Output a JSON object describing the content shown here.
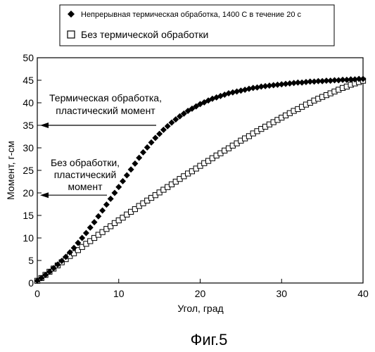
{
  "chart_data": {
    "type": "scatter",
    "title": "",
    "xlabel": "Угол, град",
    "ylabel": "Момент, г-см",
    "xlim": [
      0,
      40
    ],
    "ylim": [
      0,
      50
    ],
    "xticks": [
      "0",
      "10",
      "20",
      "30",
      "40"
    ],
    "yticks": [
      "0",
      "5",
      "10",
      "15",
      "20",
      "25",
      "30",
      "35",
      "40",
      "45",
      "50"
    ],
    "grid": false,
    "legend_position": "top",
    "series": [
      {
        "name": "Непрерывная термическая обработка, 1400 С в течение 20 с",
        "marker": "diamond-filled",
        "x": [
          0,
          0.5,
          1,
          1.5,
          2,
          2.5,
          3,
          3.5,
          4,
          4.5,
          5,
          5.5,
          6,
          6.5,
          7,
          7.5,
          8,
          8.5,
          9,
          9.5,
          10,
          10.5,
          11,
          11.5,
          12,
          12.5,
          13,
          13.5,
          14,
          14.5,
          15,
          15.5,
          16,
          16.5,
          17,
          17.5,
          18,
          18.5,
          19,
          19.5,
          20,
          20.5,
          21,
          21.5,
          22,
          22.5,
          23,
          23.5,
          24,
          24.5,
          25,
          25.5,
          26,
          26.5,
          27,
          27.5,
          28,
          28.5,
          29,
          29.5,
          30,
          30.5,
          31,
          31.5,
          32,
          32.5,
          33,
          33.5,
          34,
          34.5,
          35,
          35.5,
          36,
          36.5,
          37,
          37.5,
          38,
          38.5,
          39,
          39.5,
          40
        ],
        "y": [
          0.5,
          1.1,
          1.8,
          2.5,
          3.3,
          4.1,
          4.9,
          5.8,
          6.8,
          7.8,
          8.9,
          10,
          11.1,
          12.3,
          13.5,
          14.8,
          16.1,
          17.4,
          18.7,
          20,
          21.3,
          22.6,
          23.9,
          25.2,
          26.5,
          27.8,
          29,
          30.1,
          31.2,
          32.2,
          33.1,
          34,
          34.8,
          35.6,
          36.3,
          37,
          37.6,
          38.2,
          38.7,
          39.2,
          39.7,
          40.1,
          40.5,
          40.9,
          41.2,
          41.5,
          41.8,
          42.1,
          42.3,
          42.5,
          42.7,
          42.9,
          43.1,
          43.3,
          43.4,
          43.6,
          43.7,
          43.8,
          43.9,
          44,
          44.1,
          44.2,
          44.3,
          44.4,
          44.5,
          44.5,
          44.6,
          44.7,
          44.7,
          44.8,
          44.8,
          44.9,
          44.9,
          45,
          45,
          45.1,
          45.1,
          45.2,
          45.2,
          45.3,
          45.3
        ]
      },
      {
        "name": "Без термической обработки",
        "marker": "square-open",
        "x": [
          0,
          0.5,
          1,
          1.5,
          2,
          2.5,
          3,
          3.5,
          4,
          4.5,
          5,
          5.5,
          6,
          6.5,
          7,
          7.5,
          8,
          8.5,
          9,
          9.5,
          10,
          10.5,
          11,
          11.5,
          12,
          12.5,
          13,
          13.5,
          14,
          14.5,
          15,
          15.5,
          16,
          16.5,
          17,
          17.5,
          18,
          18.5,
          19,
          19.5,
          20,
          20.5,
          21,
          21.5,
          22,
          22.5,
          23,
          23.5,
          24,
          24.5,
          25,
          25.5,
          26,
          26.5,
          27,
          27.5,
          28,
          28.5,
          29,
          29.5,
          30,
          30.5,
          31,
          31.5,
          32,
          32.5,
          33,
          33.5,
          34,
          34.5,
          35,
          35.5,
          36,
          36.5,
          37,
          37.5,
          38,
          38.5,
          39,
          39.5,
          40
        ],
        "y": [
          0.5,
          1.1,
          1.8,
          2.5,
          3.2,
          3.9,
          4.6,
          5.3,
          6,
          6.6,
          7.3,
          8,
          8.7,
          9.3,
          10,
          10.7,
          11.3,
          12,
          12.6,
          13.3,
          13.9,
          14.5,
          15.2,
          15.8,
          16.4,
          17.1,
          17.7,
          18.3,
          18.9,
          19.5,
          20.1,
          20.7,
          21.3,
          21.9,
          22.5,
          23.1,
          23.7,
          24.3,
          24.8,
          25.4,
          26,
          26.6,
          27.1,
          27.7,
          28.3,
          28.8,
          29.4,
          29.9,
          30.5,
          31,
          31.6,
          32.1,
          32.6,
          33.2,
          33.7,
          34.2,
          34.7,
          35.2,
          35.7,
          36.2,
          36.7,
          37.2,
          37.7,
          38.2,
          38.6,
          39.1,
          39.6,
          40,
          40.5,
          40.9,
          41.3,
          41.7,
          42.1,
          42.5,
          42.9,
          43.3,
          43.6,
          44,
          44.3,
          44.6,
          44.9
        ]
      }
    ],
    "annotations": [
      {
        "lines": [
          "Термическая обработка,",
          "пластический момент"
        ],
        "arrow_to_y": 35
      },
      {
        "lines": [
          "Без обработки,",
          "пластический",
          "момент"
        ],
        "arrow_to_y": 19.5
      }
    ],
    "caption": "Фиг.5"
  }
}
